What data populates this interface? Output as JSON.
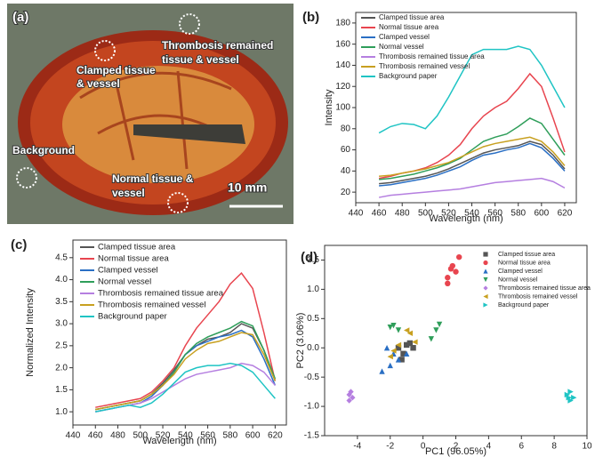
{
  "photo": {
    "panel": "(a)",
    "labels": [
      [
        "Clamped tissue",
        "& vessel"
      ],
      [
        "Thrombosis remained",
        "tissue & vessel"
      ],
      [
        "Background"
      ],
      [
        "Normal tissue &",
        "vessel"
      ]
    ],
    "scale_bar": "10 mm"
  },
  "chart_data": [
    {
      "type": "line",
      "panel": "(b)",
      "x_label": "Wavelength (nm)",
      "y_label": "Intensity",
      "legend": "upper left",
      "x": [
        460,
        470,
        480,
        490,
        500,
        510,
        520,
        530,
        540,
        550,
        560,
        570,
        580,
        590,
        600,
        610,
        620
      ],
      "xlim": [
        440,
        630
      ],
      "xticks": [
        440,
        460,
        480,
        500,
        520,
        540,
        560,
        580,
        600,
        620
      ],
      "ylim": [
        10,
        190
      ],
      "yticks": [
        20,
        40,
        60,
        80,
        100,
        120,
        140,
        160,
        180
      ],
      "series": [
        {
          "name": "Clamped tissue area",
          "color": "#555555",
          "values": [
            28,
            29,
            31,
            33,
            35,
            38,
            42,
            47,
            52,
            57,
            60,
            62,
            64,
            68,
            65,
            55,
            42
          ]
        },
        {
          "name": "Normal tissue area",
          "color": "#e8454f",
          "values": [
            33,
            35,
            38,
            40,
            43,
            48,
            55,
            65,
            80,
            92,
            100,
            106,
            118,
            132,
            120,
            90,
            58
          ]
        },
        {
          "name": "Clamped vessel",
          "color": "#2a6fc4",
          "values": [
            26,
            27,
            29,
            31,
            33,
            36,
            40,
            44,
            50,
            55,
            57,
            60,
            62,
            66,
            62,
            52,
            40
          ]
        },
        {
          "name": "Normal vessel",
          "color": "#2f9e5a",
          "values": [
            32,
            33,
            35,
            37,
            40,
            43,
            47,
            52,
            60,
            68,
            72,
            75,
            82,
            90,
            85,
            70,
            55
          ]
        },
        {
          "name": "Thrombosis remained tissue area",
          "color": "#b57fe0",
          "values": [
            15,
            17,
            18,
            19,
            20,
            21,
            22,
            23,
            25,
            27,
            29,
            30,
            31,
            32,
            33,
            30,
            24
          ]
        },
        {
          "name": "Thrombosis remained vessel",
          "color": "#c8a020",
          "values": [
            35,
            36,
            38,
            40,
            42,
            45,
            48,
            53,
            58,
            63,
            66,
            68,
            70,
            72,
            68,
            58,
            45
          ]
        },
        {
          "name": "Background paper",
          "color": "#1fc4c4",
          "values": [
            76,
            82,
            85,
            84,
            80,
            92,
            110,
            130,
            150,
            155,
            155,
            155,
            158,
            155,
            140,
            120,
            100
          ]
        }
      ]
    },
    {
      "type": "line",
      "panel": "(c)",
      "x_label": "Wavelength (nm)",
      "y_label": "Normalized Intensity",
      "legend": "upper left",
      "x": [
        460,
        470,
        480,
        490,
        500,
        510,
        520,
        530,
        540,
        550,
        560,
        570,
        580,
        590,
        600,
        610,
        620
      ],
      "xlim": [
        440,
        630
      ],
      "xticks": [
        440,
        460,
        480,
        500,
        520,
        540,
        560,
        580,
        600,
        620
      ],
      "ylim": [
        0.7,
        4.9
      ],
      "yticks": [
        {
          "value": 1,
          "label": "1.0"
        },
        1.5,
        {
          "value": 2,
          "label": "2.0"
        },
        2.5,
        {
          "value": 3,
          "label": "3.0"
        },
        3.5,
        {
          "value": 4,
          "label": "4.0"
        },
        4.5
      ],
      "series": [
        {
          "name": "Clamped tissue area",
          "color": "#555555",
          "values": [
            1.05,
            1.1,
            1.15,
            1.2,
            1.25,
            1.4,
            1.65,
            1.95,
            2.3,
            2.5,
            2.65,
            2.7,
            2.8,
            3.0,
            2.9,
            2.4,
            1.7
          ]
        },
        {
          "name": "Normal tissue area",
          "color": "#e8454f",
          "values": [
            1.1,
            1.15,
            1.2,
            1.25,
            1.3,
            1.45,
            1.7,
            2.0,
            2.5,
            2.9,
            3.2,
            3.5,
            3.9,
            4.15,
            3.8,
            2.8,
            1.7
          ]
        },
        {
          "name": "Clamped vessel",
          "color": "#2a6fc4",
          "values": [
            1.0,
            1.05,
            1.1,
            1.15,
            1.2,
            1.35,
            1.6,
            1.9,
            2.3,
            2.5,
            2.6,
            2.7,
            2.75,
            2.85,
            2.7,
            2.2,
            1.6
          ]
        },
        {
          "name": "Normal vessel",
          "color": "#2f9e5a",
          "values": [
            1.05,
            1.1,
            1.15,
            1.2,
            1.25,
            1.4,
            1.6,
            1.9,
            2.3,
            2.55,
            2.7,
            2.8,
            2.9,
            3.05,
            2.95,
            2.4,
            1.75
          ]
        },
        {
          "name": "Thrombosis remained tissue area",
          "color": "#b57fe0",
          "values": [
            1.0,
            1.05,
            1.1,
            1.15,
            1.2,
            1.3,
            1.45,
            1.6,
            1.75,
            1.85,
            1.9,
            1.95,
            2.0,
            2.1,
            2.05,
            1.9,
            1.6
          ]
        },
        {
          "name": "Thrombosis remained vessel",
          "color": "#c8a020",
          "values": [
            1.05,
            1.1,
            1.15,
            1.2,
            1.25,
            1.4,
            1.6,
            1.85,
            2.2,
            2.4,
            2.55,
            2.6,
            2.7,
            2.8,
            2.75,
            2.3,
            1.7
          ]
        },
        {
          "name": "Background paper",
          "color": "#1fc4c4",
          "values": [
            1.0,
            1.05,
            1.1,
            1.15,
            1.1,
            1.2,
            1.4,
            1.65,
            1.9,
            2.0,
            2.05,
            2.05,
            2.1,
            2.05,
            1.9,
            1.6,
            1.3
          ]
        }
      ]
    },
    {
      "type": "scatter",
      "panel": "(d)",
      "x_label": "PC1 (96.05%)",
      "y_label": "PC2 (3.06%)",
      "legend": "upper right",
      "xlim": [
        -6,
        10
      ],
      "xticks": [
        -4,
        -2,
        0,
        2,
        4,
        6,
        8,
        10
      ],
      "ylim": [
        -1.5,
        1.75
      ],
      "yticks": [
        -1.5,
        {
          "value": -1,
          "label": "-1.0"
        },
        -0.5,
        {
          "value": 0,
          "label": "0.0"
        },
        0.5,
        {
          "value": 1,
          "label": "1.0"
        },
        1.5
      ],
      "series": [
        {
          "name": "Clamped tissue area",
          "color": "#555555",
          "marker": "square",
          "x": [
            -1.5,
            -1.2,
            -1.0,
            -0.8,
            -0.6,
            -1.3
          ],
          "values": [
            0.0,
            -0.1,
            0.05,
            0.08,
            0.0,
            -0.2
          ]
        },
        {
          "name": "Normal tissue area",
          "color": "#e8454f",
          "marker": "circle",
          "x": [
            1.5,
            1.7,
            1.8,
            2.0,
            2.2,
            1.5
          ],
          "values": [
            1.2,
            1.35,
            1.4,
            1.3,
            1.55,
            1.1
          ]
        },
        {
          "name": "Clamped vessel",
          "color": "#2a6fc4",
          "marker": "triangle-up",
          "x": [
            -2.5,
            -2.0,
            -1.8,
            -1.5,
            -2.2,
            -1.0
          ],
          "values": [
            -0.4,
            -0.3,
            -0.1,
            -0.2,
            0.0,
            -0.1
          ]
        },
        {
          "name": "Normal vessel",
          "color": "#2f9e5a",
          "marker": "triangle-down",
          "x": [
            -2.0,
            -1.8,
            -1.5,
            0.5,
            0.8,
            1.0
          ],
          "values": [
            0.35,
            0.38,
            0.3,
            0.15,
            0.3,
            0.4
          ]
        },
        {
          "name": "Thrombosis remained tissue area",
          "color": "#b57fe0",
          "marker": "diamond",
          "x": [
            -4.5,
            -4.4,
            -4.5,
            -4.3
          ],
          "values": [
            -0.8,
            -0.75,
            -0.9,
            -0.85
          ]
        },
        {
          "name": "Thrombosis remained vessel",
          "color": "#c8a020",
          "marker": "triangle-left",
          "x": [
            -2.0,
            -1.8,
            -1.5,
            -0.8,
            -1.0,
            -0.5
          ],
          "values": [
            -0.15,
            -0.05,
            0.05,
            0.25,
            0.3,
            0.1
          ]
        },
        {
          "name": "Background paper",
          "color": "#1fc4c4",
          "marker": "triangle-right",
          "x": [
            8.8,
            9.0,
            9.2,
            9.0,
            8.9
          ],
          "values": [
            -0.8,
            -0.75,
            -0.85,
            -0.9,
            -0.85
          ]
        }
      ]
    }
  ]
}
